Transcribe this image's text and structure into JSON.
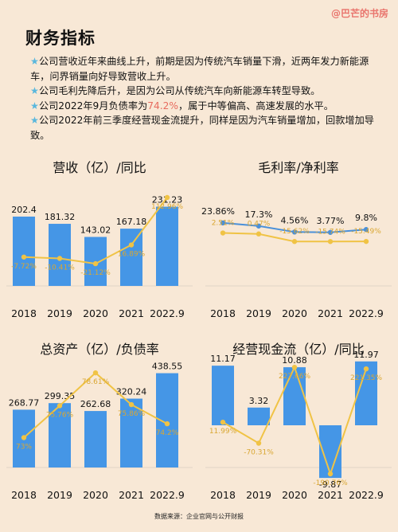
{
  "watermark": "@巴芒的书房",
  "title": "财务指标",
  "bullets": [
    {
      "star": "★",
      "pre": "公司营收近年来曲线上升，前期是因为传统汽车销量下滑，近两年发力新能源车，问界销量向好导致营收上升。",
      "hl": "",
      "post": ""
    },
    {
      "star": "★",
      "pre": "公司毛利先降后升，是因为公司从传统汽车向新能源车转型导致。",
      "hl": "",
      "post": ""
    },
    {
      "star": "★",
      "pre": "公司2022年9月负债率为",
      "hl": "74.2%",
      "post": "，属于中等偏高、高速发展的水平。"
    },
    {
      "star": "★",
      "pre": "公司2022年前三季度经营现金流提升，同样是因为汽车销量增加，回款增加导致。",
      "hl": "",
      "post": ""
    }
  ],
  "colors": {
    "bar": "#4596e6",
    "line_gold": "#f0c345",
    "line_blue": "#4a90d9",
    "label_gold": "#d9a733"
  },
  "chart_data": [
    {
      "type": "bar",
      "title": "营收（亿）/同比",
      "categories": [
        "2018",
        "2019",
        "2020",
        "2021",
        "2022.9"
      ],
      "series": [
        {
          "values": [
            202.4,
            181.32,
            143.02,
            167.18,
            231.23
          ],
          "labels": [
            "202.4",
            "181.32",
            "143.02",
            "167.18",
            "231.23"
          ]
        },
        {
          "type": "line",
          "values": [
            -7.72,
            -10.41,
            -21.12,
            16.89,
            112.96
          ],
          "labels": [
            "-7.72%",
            "-10.41%",
            "-21.12%",
            "16.89%",
            "112.96%"
          ]
        }
      ]
    },
    {
      "type": "line",
      "title": "毛利率/净利率",
      "categories": [
        "2018",
        "2019",
        "2020",
        "2021",
        "2022.9"
      ],
      "series": [
        {
          "values": [
            23.86,
            17.3,
            4.56,
            3.77,
            9.8
          ],
          "labels": [
            "23.86%",
            "17.3%",
            "4.56%",
            "3.77%",
            "9.8%"
          ]
        },
        {
          "values": [
            2.51,
            0.47,
            -15.62,
            -15.74,
            -15.49
          ],
          "labels": [
            "2.51%",
            "0.47%",
            "-15.62%",
            "-15.74%",
            "-15.49%"
          ]
        }
      ]
    },
    {
      "type": "bar",
      "title": "总资产（亿）/负债率",
      "categories": [
        "2018",
        "2019",
        "2020",
        "2021",
        "2022.9"
      ],
      "series": [
        {
          "values": [
            268.77,
            299.35,
            262.68,
            320.24,
            438.55
          ],
          "labels": [
            "268.77",
            "299.35",
            "262.68",
            "320.24",
            "438.55"
          ]
        },
        {
          "type": "line",
          "values": [
            73,
            75.76,
            78.61,
            75.86,
            74.2
          ],
          "labels": [
            "73%",
            "75.76%",
            "78.61%",
            "75.86%",
            "74.2%"
          ]
        }
      ]
    },
    {
      "type": "bar",
      "title": "经营现金流（亿）/同比",
      "categories": [
        "2018",
        "2019",
        "2020",
        "2021",
        "2022.9"
      ],
      "series": [
        {
          "values": [
            11.17,
            3.32,
            10.88,
            -9.87,
            11.97
          ],
          "labels": [
            "11.17",
            "3.32",
            "10.88",
            "-9.87",
            "11.97"
          ]
        },
        {
          "type": "line",
          "values": [
            11.99,
            -70.31,
            227.66,
            -190.76,
            221.35
          ],
          "labels": [
            "11.99%",
            "-70.31%",
            "227.66%",
            "-190.76%",
            "221.35%"
          ]
        }
      ]
    }
  ],
  "source": "数据来源：企业官网与公开财报"
}
